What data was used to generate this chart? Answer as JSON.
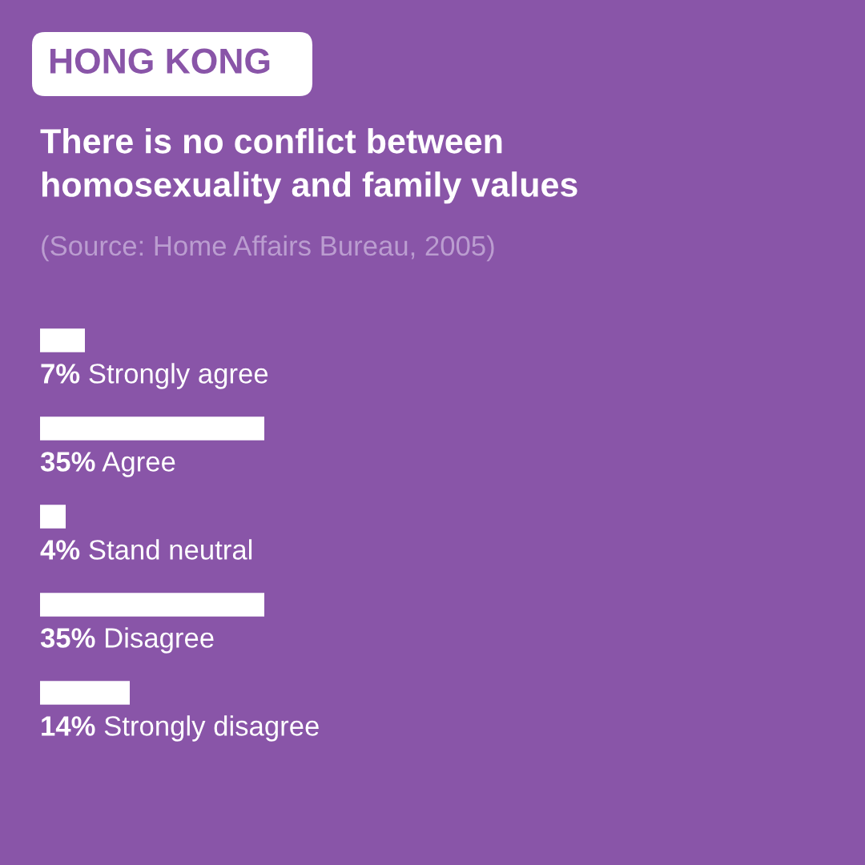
{
  "chart_data": {
    "type": "bar",
    "orientation": "horizontal",
    "subtitle": "HONG KONG",
    "title": "There is no conflict between\nhomosexuality and family values",
    "annotations": [
      "(Source: Home Affairs Bureau, 2005)"
    ],
    "categories": [
      "Strongly agree",
      "Agree",
      "Stand neutral",
      "Disagree",
      "Strongly disagree"
    ],
    "values": [
      7,
      35,
      4,
      35,
      14
    ],
    "value_labels": [
      "7%",
      "35%",
      "4%",
      "35%",
      "14%"
    ],
    "color": "#ffffff"
  }
}
